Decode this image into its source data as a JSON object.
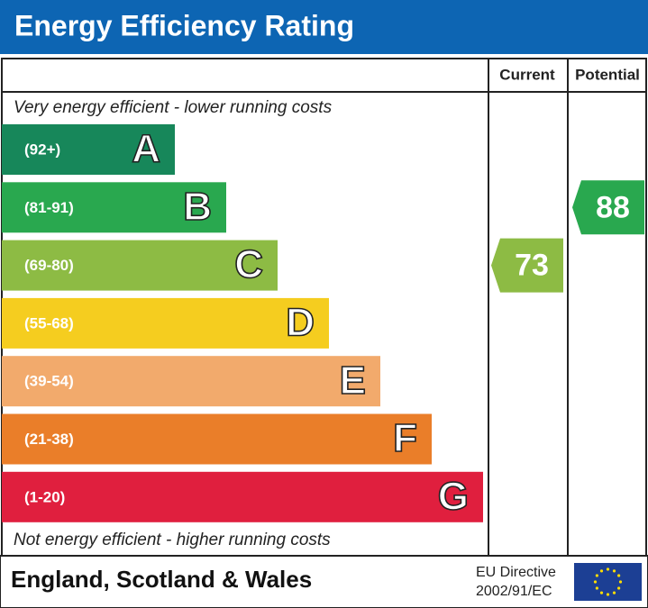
{
  "header": {
    "title": "Energy Efficiency Rating"
  },
  "columns": [
    "Current",
    "Potential"
  ],
  "top_note": "Very energy efficient - lower running costs",
  "bottom_note": "Not energy efficient - higher running costs",
  "bands": [
    {
      "range": "(92+)",
      "letter": "A",
      "color": "#17875a"
    },
    {
      "range": "(81-91)",
      "letter": "B",
      "color": "#29a84f"
    },
    {
      "range": "(69-80)",
      "letter": "C",
      "color": "#8dbb44"
    },
    {
      "range": "(55-68)",
      "letter": "D",
      "color": "#f5cd1f"
    },
    {
      "range": "(39-54)",
      "letter": "E",
      "color": "#f2aa6c"
    },
    {
      "range": "(21-38)",
      "letter": "F",
      "color": "#ea7e29"
    },
    {
      "range": "(1-20)",
      "letter": "G",
      "color": "#e01f3e"
    }
  ],
  "ratings": {
    "current": 73,
    "potential": 88
  },
  "footer": {
    "region": "England, Scotland & Wales",
    "directive": [
      "EU Directive",
      "2002/91/EC"
    ]
  }
}
